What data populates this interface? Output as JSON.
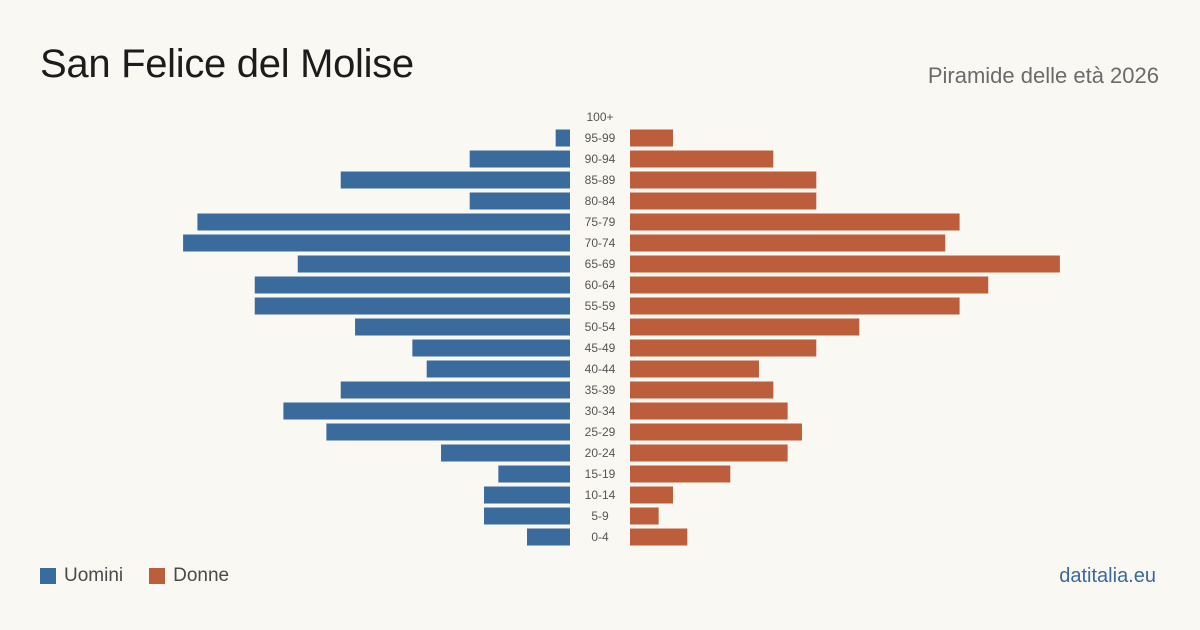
{
  "header": {
    "title": "San Felice del Molise",
    "subtitle": "Piramide delle età 2026"
  },
  "legend": {
    "male_label": "Uomini",
    "female_label": "Donne"
  },
  "footer": {
    "brand": "datitalia.eu"
  },
  "colors": {
    "male": "#3b6a9c",
    "female": "#bc5e3c",
    "tick_text": "#555555"
  },
  "chart_data": {
    "type": "bar",
    "orientation": "horizontal-pyramid",
    "categories": [
      "100+",
      "95-99",
      "90-94",
      "85-89",
      "80-84",
      "75-79",
      "70-74",
      "65-69",
      "60-64",
      "55-59",
      "50-54",
      "45-49",
      "40-44",
      "35-39",
      "30-34",
      "25-29",
      "20-24",
      "15-19",
      "10-14",
      "5-9",
      "0-4"
    ],
    "series": [
      {
        "name": "Uomini",
        "values": [
          0,
          1,
          7,
          16,
          7,
          26,
          27,
          19,
          22,
          22,
          15,
          11,
          10,
          16,
          20,
          17,
          9,
          5,
          6,
          6,
          3
        ]
      },
      {
        "name": "Donne",
        "values": [
          0,
          3,
          10,
          13,
          13,
          23,
          22,
          30,
          25,
          23,
          16,
          13,
          9,
          10,
          11,
          12,
          11,
          7,
          3,
          2,
          4
        ]
      }
    ],
    "grid": false,
    "legend_position": "bottom-left"
  }
}
